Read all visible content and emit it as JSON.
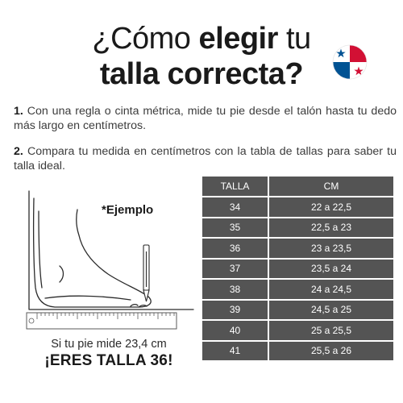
{
  "title": {
    "part1": "¿Cómo ",
    "part2": "elegir",
    "part3": " tu",
    "line2": "talla correcta?"
  },
  "steps": [
    {
      "number": "1.",
      "text": " Con una regla o cinta métrica, mide tu pie desde el talón hasta tu dedo más largo en centímetros."
    },
    {
      "number": "2.",
      "text": " Compara tu medida en centímetros con la tabla de tallas para saber tu talla ideal."
    }
  ],
  "example": {
    "label": "*Ejemplo",
    "caption": "Si tu pie mide 23,4 cm",
    "result": "¡ERES TALLA 36!"
  },
  "table": {
    "headers": [
      "TALLA",
      "CM"
    ],
    "rows": [
      [
        "34",
        "22 a 22,5"
      ],
      [
        "35",
        "22,5 a 23"
      ],
      [
        "36",
        "23 a 23,5"
      ],
      [
        "37",
        "23,5 a 24"
      ],
      [
        "38",
        "24 a 24,5"
      ],
      [
        "39",
        "24,5 a 25"
      ],
      [
        "40",
        "25 a 25,5"
      ],
      [
        "41",
        "25,5 a 26"
      ]
    ]
  },
  "colors": {
    "table_cell": "#545454",
    "flag_red": "#d21034",
    "flag_blue": "#005293"
  },
  "icons": {
    "flag": "panama-flag-icon",
    "illustration": "foot-measuring-illustration"
  }
}
